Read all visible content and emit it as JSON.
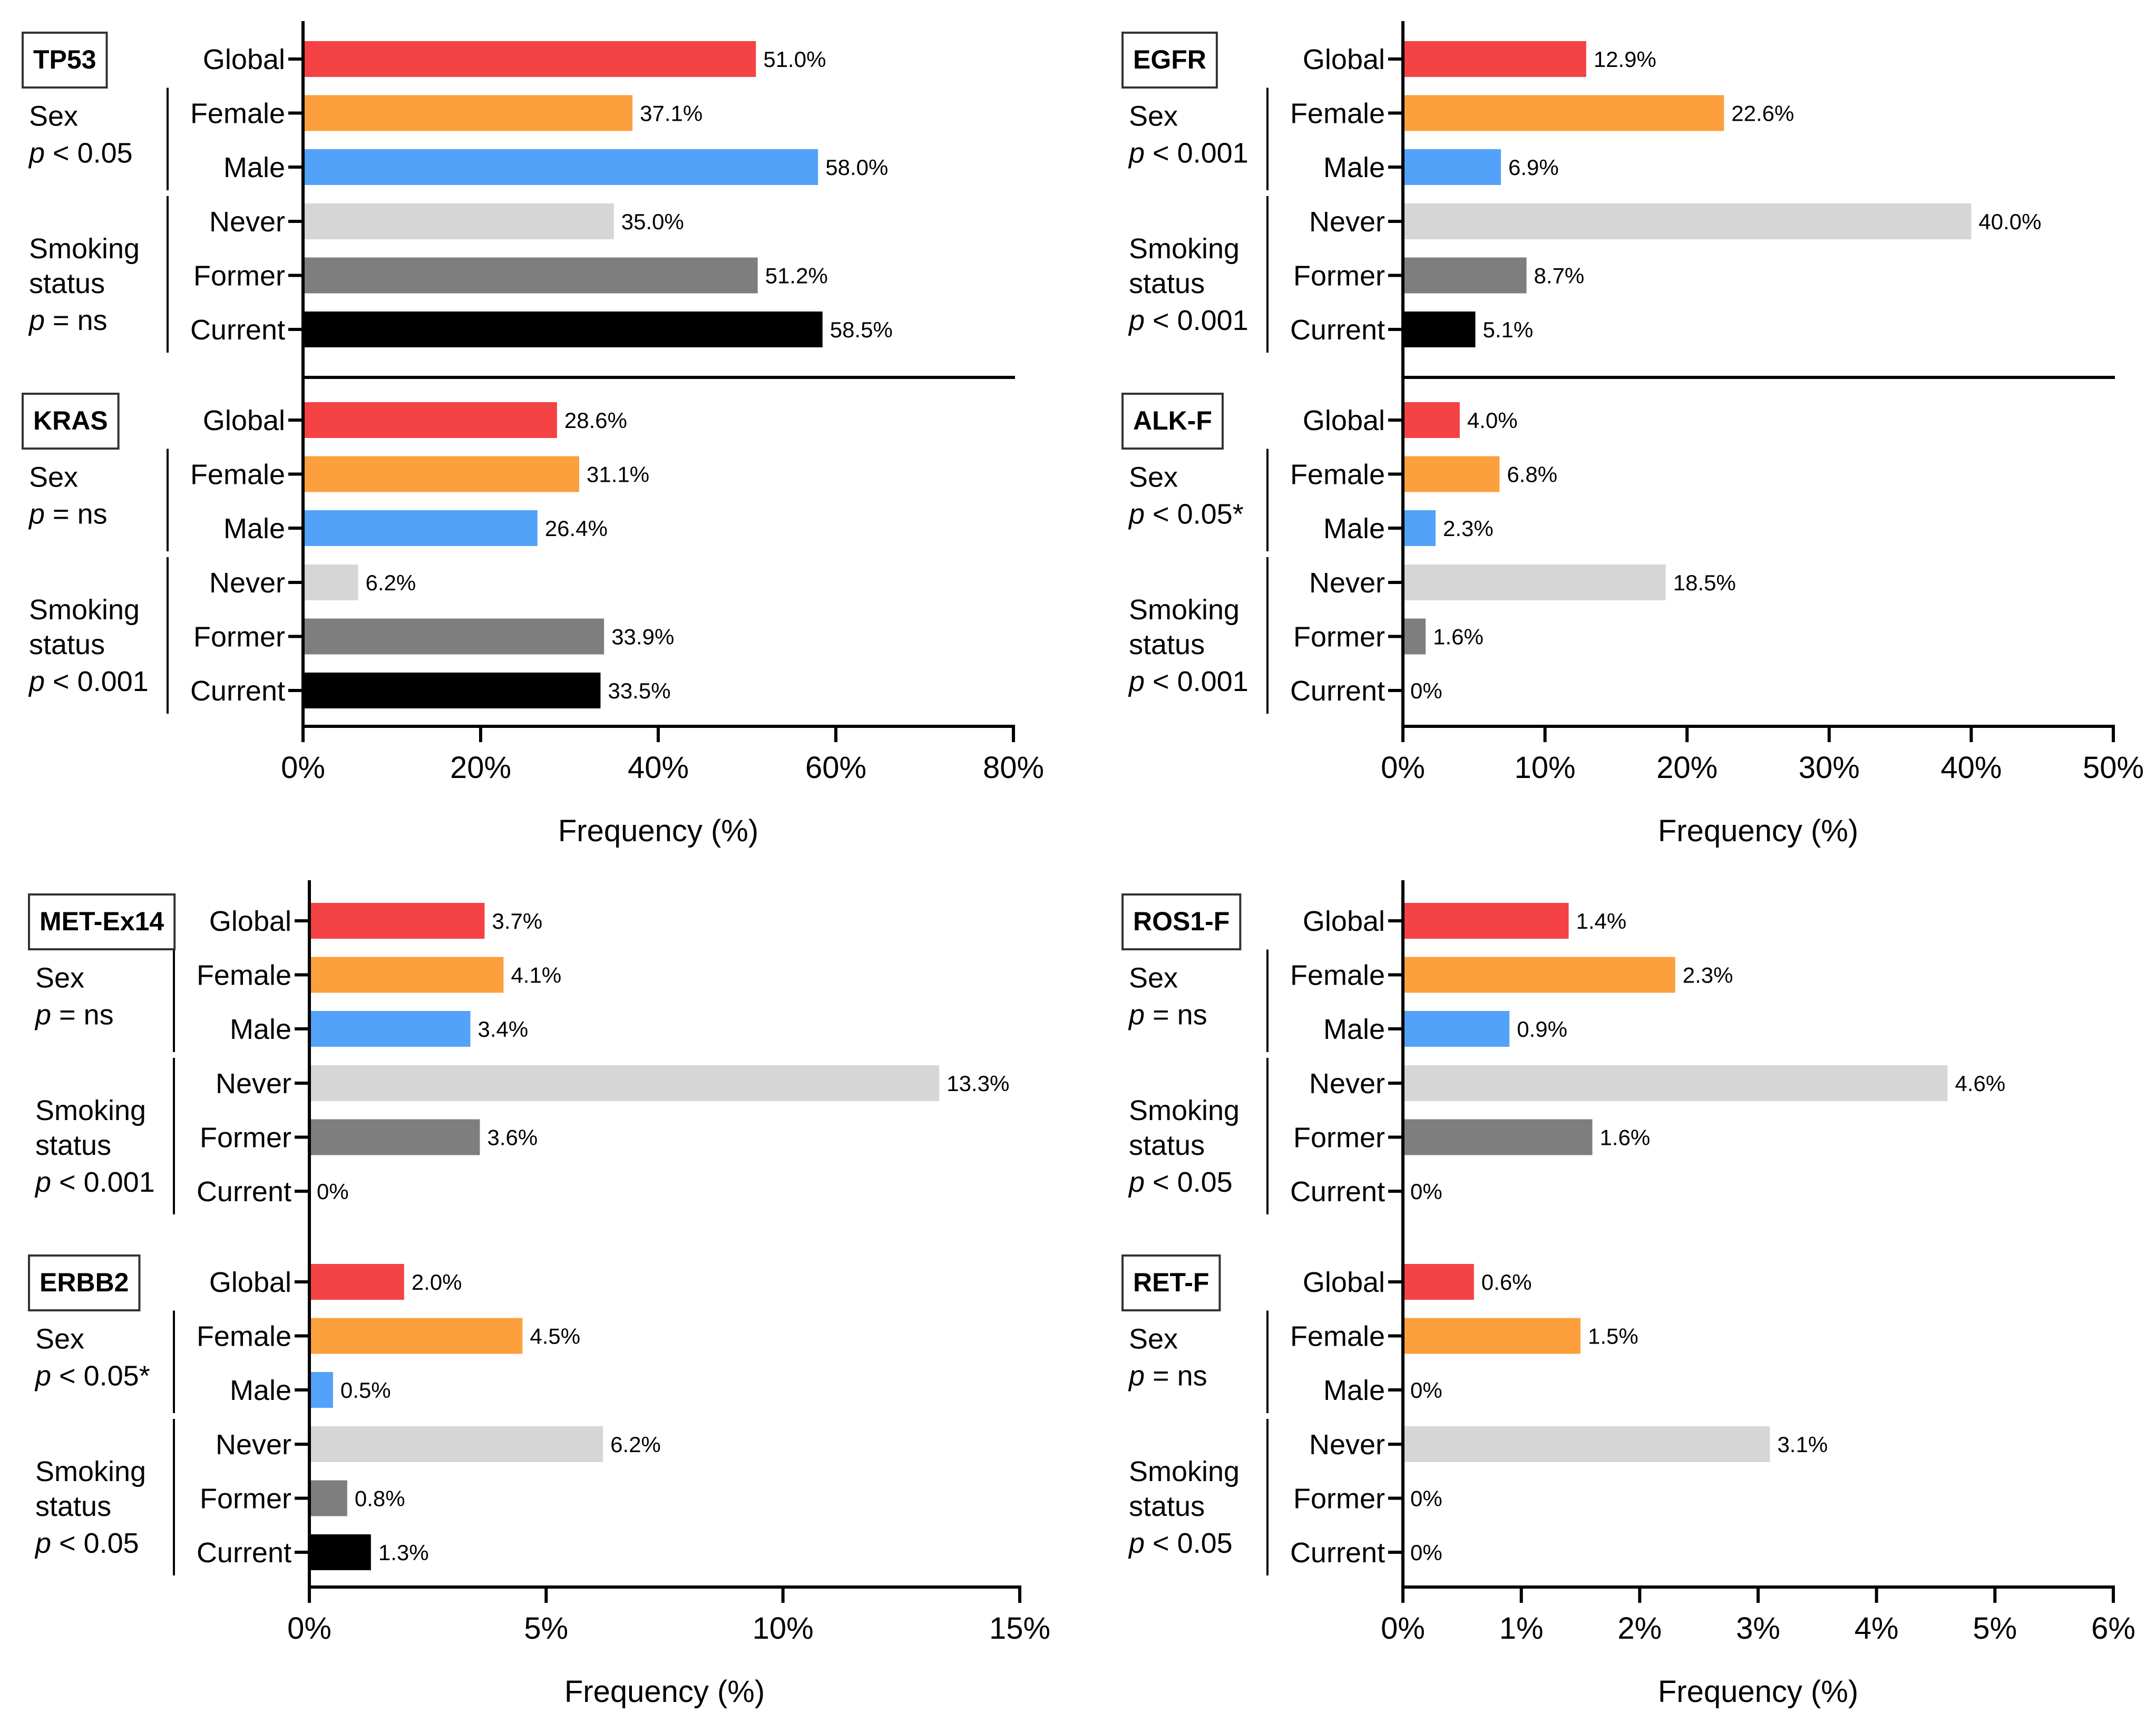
{
  "colors": {
    "global": "#f54245",
    "female": "#fca03d",
    "male": "#53a2fa",
    "never": "#d6d6d6",
    "former": "#7e7e7e",
    "current": "#000000"
  },
  "chart_data": [
    {
      "type": "bar",
      "orientation": "horizontal",
      "panel": "top-left",
      "xlabel": "Frequency (%)",
      "xlim": [
        0,
        80
      ],
      "xticks": [
        0,
        20,
        40,
        60,
        80
      ],
      "xtick_labels": [
        "0%",
        "20%",
        "40%",
        "60%",
        "80%"
      ],
      "categories": [
        "Global",
        "Female",
        "Male",
        "Never",
        "Former",
        "Current"
      ],
      "subplots": [
        {
          "gene": "TP53",
          "values": [
            51.0,
            37.1,
            58.0,
            35.0,
            51.2,
            58.5
          ],
          "value_labels": [
            "51.0%",
            "37.1%",
            "58.0%",
            "35.0%",
            "51.2%",
            "58.5%"
          ],
          "sex_label": "Sex",
          "sex_p": "< 0.05",
          "smoking_label_1": "Smoking",
          "smoking_label_2": "status",
          "smoking_p": "= ns",
          "separator_below": true
        },
        {
          "gene": "KRAS",
          "values": [
            28.6,
            31.1,
            26.4,
            6.2,
            33.9,
            33.5
          ],
          "value_labels": [
            "28.6%",
            "31.1%",
            "26.4%",
            "6.2%",
            "33.9%",
            "33.5%"
          ],
          "sex_label": "Sex",
          "sex_p": "= ns",
          "smoking_label_1": "Smoking",
          "smoking_label_2": "status",
          "smoking_p": "< 0.001",
          "separator_below": false
        }
      ]
    },
    {
      "type": "bar",
      "orientation": "horizontal",
      "panel": "top-right",
      "xlabel": "Frequency (%)",
      "xlim": [
        0,
        50
      ],
      "xticks": [
        0,
        10,
        20,
        30,
        40,
        50
      ],
      "xtick_labels": [
        "0%",
        "10%",
        "20%",
        "30%",
        "40%",
        "50%"
      ],
      "categories": [
        "Global",
        "Female",
        "Male",
        "Never",
        "Former",
        "Current"
      ],
      "subplots": [
        {
          "gene": "EGFR",
          "values": [
            12.9,
            22.6,
            6.9,
            40.0,
            8.7,
            5.1
          ],
          "value_labels": [
            "12.9%",
            "22.6%",
            "6.9%",
            "40.0%",
            "8.7%",
            "5.1%"
          ],
          "sex_label": "Sex",
          "sex_p": "< 0.001",
          "smoking_label_1": "Smoking",
          "smoking_label_2": "status",
          "smoking_p": "< 0.001",
          "separator_below": true
        },
        {
          "gene": "ALK-F",
          "values": [
            4.0,
            6.8,
            2.3,
            18.5,
            1.6,
            0
          ],
          "value_labels": [
            "4.0%",
            "6.8%",
            "2.3%",
            "18.5%",
            "1.6%",
            "0%"
          ],
          "sex_label": "Sex",
          "sex_p": "< 0.05*",
          "smoking_label_1": "Smoking",
          "smoking_label_2": "status",
          "smoking_p": "< 0.001",
          "separator_below": false
        }
      ]
    },
    {
      "type": "bar",
      "orientation": "horizontal",
      "panel": "bottom-left",
      "xlabel": "Frequency (%)",
      "xlim": [
        0,
        15
      ],
      "xticks": [
        0,
        5,
        10,
        15
      ],
      "xtick_labels": [
        "0%",
        "5%",
        "10%",
        "15%"
      ],
      "categories": [
        "Global",
        "Female",
        "Male",
        "Never",
        "Former",
        "Current"
      ],
      "subplots": [
        {
          "gene": "MET-Ex14",
          "values": [
            3.7,
            4.1,
            3.4,
            13.3,
            3.6,
            0
          ],
          "value_labels": [
            "3.7%",
            "4.1%",
            "3.4%",
            "13.3%",
            "3.6%",
            "0%"
          ],
          "sex_label": "Sex",
          "sex_p": "= ns",
          "smoking_label_1": "Smoking",
          "smoking_label_2": "status",
          "smoking_p": "< 0.001",
          "separator_below": false
        },
        {
          "gene": "ERBB2",
          "values": [
            2.0,
            4.5,
            0.5,
            6.2,
            0.8,
            1.3
          ],
          "value_labels": [
            "2.0%",
            "4.5%",
            "0.5%",
            "6.2%",
            "0.8%",
            "1.3%"
          ],
          "sex_label": "Sex",
          "sex_p": "< 0.05*",
          "smoking_label_1": "Smoking",
          "smoking_label_2": "status",
          "smoking_p": "< 0.05",
          "separator_below": false
        }
      ]
    },
    {
      "type": "bar",
      "orientation": "horizontal",
      "panel": "bottom-right",
      "xlabel": "Frequency (%)",
      "xlim": [
        0,
        6
      ],
      "xticks": [
        0,
        1,
        2,
        3,
        4,
        5,
        6
      ],
      "xtick_labels": [
        "0%",
        "1%",
        "2%",
        "3%",
        "4%",
        "5%",
        "6%"
      ],
      "categories": [
        "Global",
        "Female",
        "Male",
        "Never",
        "Former",
        "Current"
      ],
      "subplots": [
        {
          "gene": "ROS1-F",
          "values": [
            1.4,
            2.3,
            0.9,
            4.6,
            1.6,
            0
          ],
          "value_labels": [
            "1.4%",
            "2.3%",
            "0.9%",
            "4.6%",
            "1.6%",
            "0%"
          ],
          "sex_label": "Sex",
          "sex_p": "= ns",
          "smoking_label_1": "Smoking",
          "smoking_label_2": "status",
          "smoking_p": "< 0.05",
          "separator_below": false
        },
        {
          "gene": "RET-F",
          "values": [
            0.6,
            1.5,
            0,
            3.1,
            0,
            0
          ],
          "value_labels": [
            "0.6%",
            "1.5%",
            "0%",
            "3.1%",
            "0%",
            "0%"
          ],
          "sex_label": "Sex",
          "sex_p": "= ns",
          "smoking_label_1": "Smoking",
          "smoking_label_2": "status",
          "smoking_p": "< 0.05",
          "separator_below": false
        }
      ]
    }
  ]
}
